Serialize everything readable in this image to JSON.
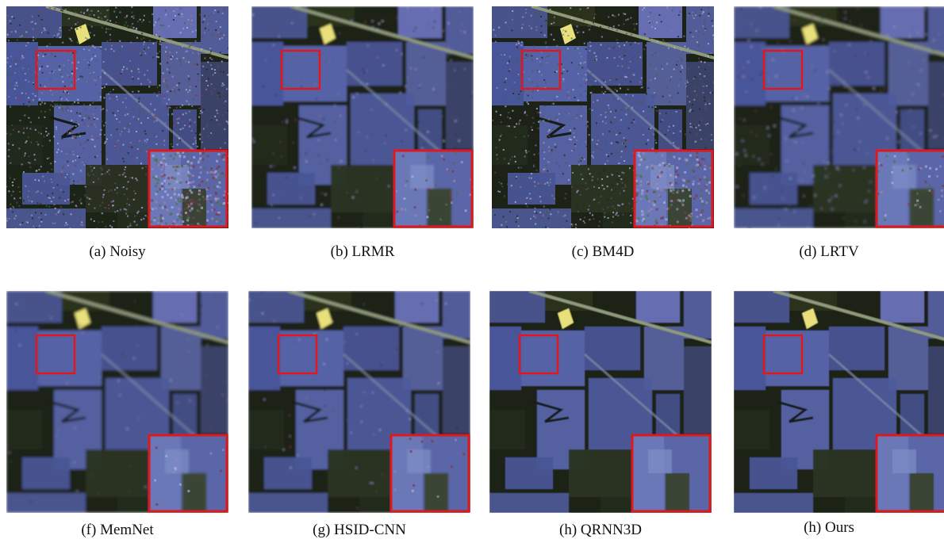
{
  "figure": {
    "panels": [
      {
        "id": "a",
        "caption": "(a) Noisy",
        "noise": 1.0,
        "blur": 0.0
      },
      {
        "id": "b",
        "caption": "(b) LRMR",
        "noise": 0.15,
        "blur": 1.4
      },
      {
        "id": "c",
        "caption": "(c) BM4D",
        "noise": 0.75,
        "blur": 0.3
      },
      {
        "id": "d",
        "caption": "(d) LRTV",
        "noise": 0.2,
        "blur": 1.6
      },
      {
        "id": "f",
        "caption": "(f) MemNet",
        "noise": 0.05,
        "blur": 1.6
      },
      {
        "id": "g",
        "caption": "(g) HSID-CNN",
        "noise": 0.05,
        "blur": 1.4
      },
      {
        "id": "h",
        "caption": "(h) QRNN3D",
        "noise": 0.0,
        "blur": 0.6
      },
      {
        "id": "h2",
        "caption": "(h) Ours",
        "noise": 0.0,
        "blur": 0.5
      }
    ],
    "colors": {
      "highlight_box": "#e0181e",
      "field_blue": "#5a66a8",
      "field_dark": "#1c2418",
      "road": "#8f9a7a",
      "building": "#e8e07a"
    }
  }
}
